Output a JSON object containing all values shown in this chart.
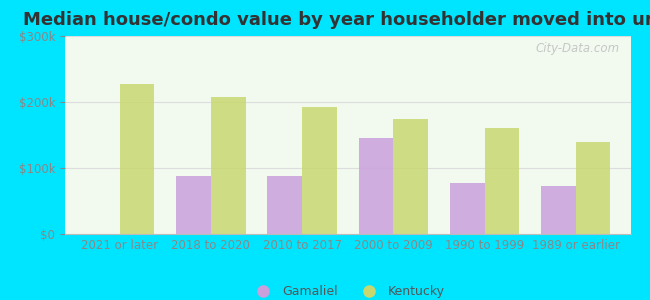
{
  "title": "Median house/condo value by year householder moved into unit",
  "categories": [
    "2021 or later",
    "2018 to 2020",
    "2010 to 2017",
    "2000 to 2009",
    "1990 to 1999",
    "1989 or earlier"
  ],
  "gamaliel_values": [
    0,
    88000,
    88000,
    145000,
    78000,
    72000
  ],
  "kentucky_values": [
    228000,
    207000,
    193000,
    175000,
    160000,
    140000
  ],
  "gamaliel_color": "#c9a0dc",
  "kentucky_color": "#c8d870",
  "background_outer": "#00e5ff",
  "background_inner": "#f2faf0",
  "bar_width": 0.38,
  "ylim": [
    0,
    300000
  ],
  "yticks": [
    0,
    100000,
    200000,
    300000
  ],
  "legend_labels": [
    "Gamaliel",
    "Kentucky"
  ],
  "watermark_text": "City-Data.com",
  "title_fontsize": 13,
  "tick_fontsize": 8.5,
  "legend_fontsize": 9
}
